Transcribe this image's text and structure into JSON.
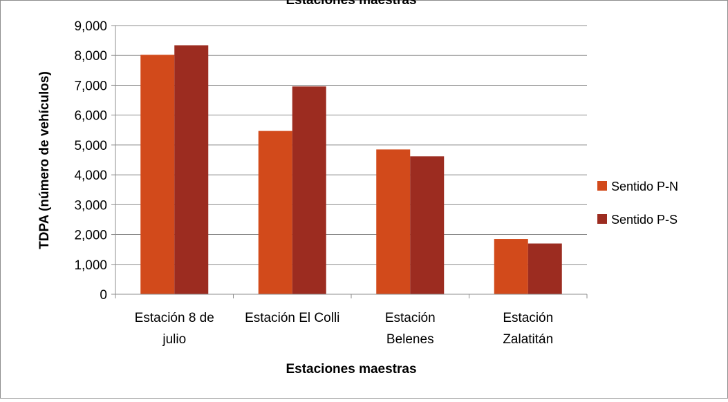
{
  "chart_data": {
    "type": "bar",
    "title": "Estaciones maestras",
    "xlabel": "Estaciones maestras",
    "ylabel": "TDPA (número de vehículos)",
    "ylim": [
      0,
      9000
    ],
    "yticks": [
      "0",
      "1,000",
      "2,000",
      "3,000",
      "4,000",
      "5,000",
      "6,000",
      "7,000",
      "8,000",
      "9,000"
    ],
    "categories": [
      [
        "Estación 8 de",
        "julio"
      ],
      [
        "Estación El Colli"
      ],
      [
        "Estación",
        "Belenes"
      ],
      [
        "Estación",
        "Zalatitán"
      ]
    ],
    "series": [
      {
        "name": "Sentido P-N",
        "color": "#D24A1B",
        "values": [
          8020,
          5470,
          4850,
          1850
        ]
      },
      {
        "name": "Sentido P-S",
        "color": "#9C2C20",
        "values": [
          8340,
          6960,
          4620,
          1700
        ]
      }
    ],
    "grid": true,
    "legend_position": "right"
  }
}
